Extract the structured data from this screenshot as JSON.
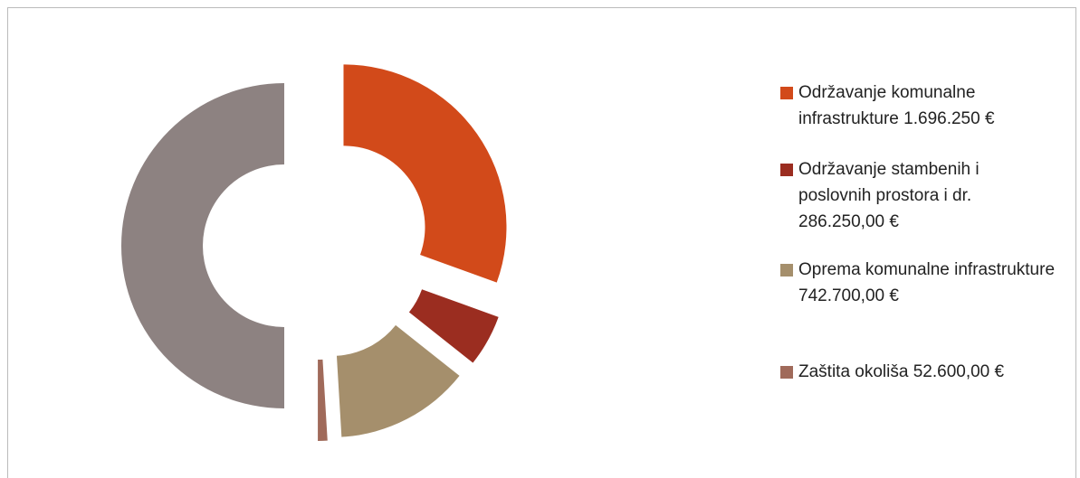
{
  "chart_data": {
    "type": "doughnut",
    "categories": [
      "Održavanje komunalne infrastrukture 1.696.250 €",
      "Održavanje stambenih i poslovnih prostora i dr. 286.250,00 €",
      "Oprema komunalne infrastrukture 742.700,00 €",
      "Zaštita okoliša 52.600,00 €"
    ],
    "values": [
      1696250,
      286250,
      742700,
      52600
    ],
    "colors": [
      "#d24a1a",
      "#9b2d20",
      "#a58f6c",
      "#a06a5a"
    ],
    "total_color": "#8d8281",
    "legend": "right"
  }
}
